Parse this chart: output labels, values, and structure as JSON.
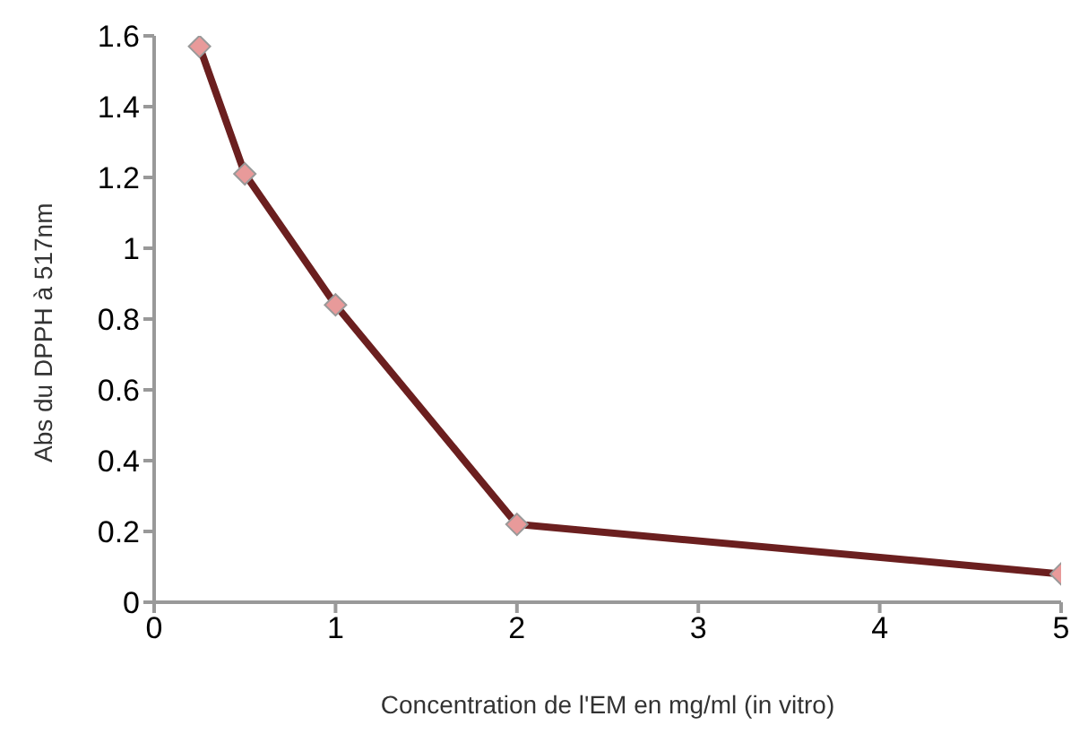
{
  "chart_data": {
    "type": "line",
    "xlabel": "Concentration de l'EM en mg/ml (in vitro)",
    "ylabel": "Abs du DPPH à 517nm",
    "x": [
      0.25,
      0.5,
      1,
      2,
      5
    ],
    "series": [
      {
        "color": "#6b1f1f",
        "values": [
          1.57,
          1.21,
          0.84,
          0.22,
          0.08
        ]
      }
    ],
    "xlim": [
      0,
      5
    ],
    "xticks": [
      0,
      1,
      2,
      3,
      4,
      5
    ],
    "ylim": [
      0,
      1.6
    ],
    "yticks": [
      0,
      0.2,
      0.4,
      0.6,
      0.8,
      1,
      1.2,
      1.4,
      1.6
    ],
    "marker": "diamond",
    "grid": false,
    "legend": false
  }
}
